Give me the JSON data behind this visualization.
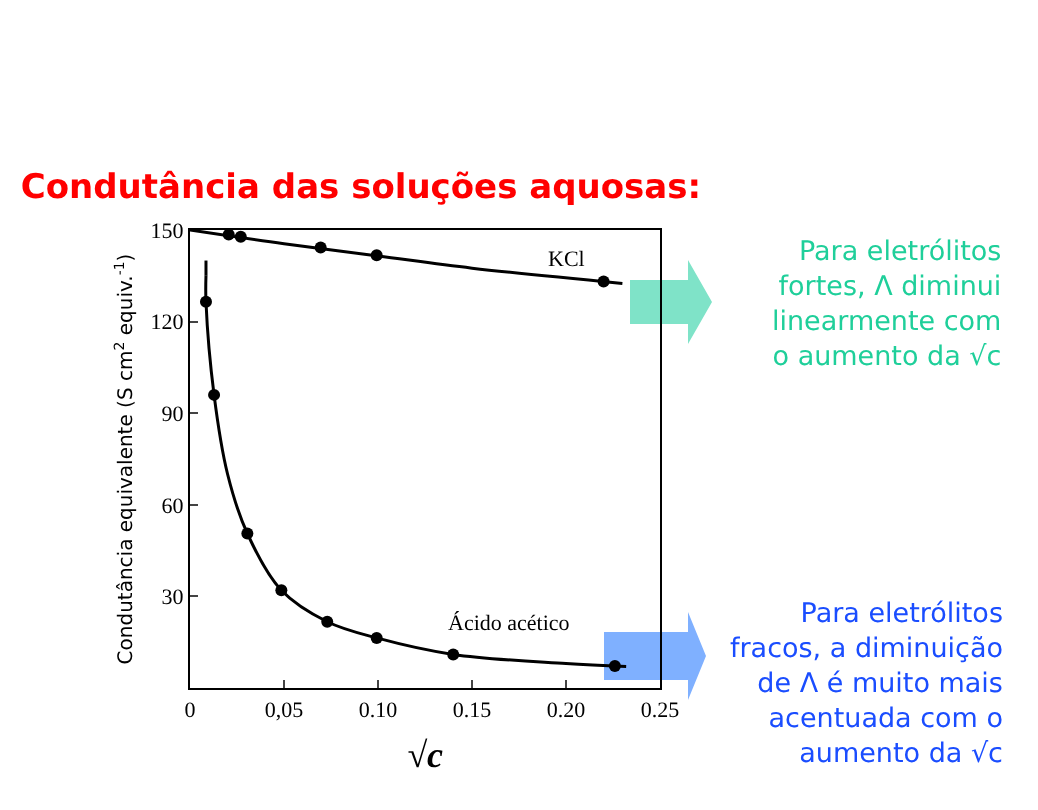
{
  "chart_data": {
    "type": "scatter",
    "title": "Condutância das soluções aquosas:",
    "xlabel": "√c",
    "ylabel": "Condutância equivalente (S cm$^{2}$ equiv.$^{-1}$)",
    "xlim": [
      0,
      0.25
    ],
    "xticks": [
      0,
      {
        "value": 0.05,
        "label": "0,05"
      },
      {
        "value": 0.1,
        "label": "0.10"
      },
      0.15,
      {
        "value": 0.2,
        "label": "0.20"
      },
      0.25
    ],
    "ylim": [
      0,
      150
    ],
    "yticks": [
      30,
      60,
      90,
      120,
      150
    ],
    "grid": false,
    "marker": "circle",
    "series": [
      {
        "color": "#000000",
        "x": [
          0.0206,
          0.027,
          0.0695,
          0.0993,
          0.22
        ],
        "values": [
          148.5,
          147.8,
          144.3,
          141.7,
          133.1
        ]
      },
      {
        "color": "#000000",
        "x": [
          0.0085,
          0.0128,
          0.0305,
          0.0486,
          0.073,
          0.0993,
          0.14,
          0.226
        ],
        "values": [
          126.5,
          96,
          50.6,
          32,
          21.7,
          16.4,
          11,
          7.2
        ]
      },
      {
        "type": "line",
        "marker": "none",
        "color": "#000000",
        "line_style": "solid",
        "x": [
          0,
          0.05,
          0.1,
          0.15,
          0.23
        ],
        "values": [
          150,
          145.5,
          141.5,
          137.5,
          132.5
        ]
      },
      {
        "type": "line",
        "marker": "none",
        "color": "#000000",
        "line_style": "solid",
        "x": [
          0.0085,
          0.0085,
          0.0128,
          0.02,
          0.0305,
          0.0486,
          0.073,
          0.0993,
          0.14,
          0.2,
          0.232
        ],
        "values": [
          135,
          126.5,
          96,
          70,
          50.6,
          32,
          21.7,
          16.4,
          11,
          8,
          7
        ]
      },
      {
        "type": "line",
        "marker": "none",
        "color": "#000000",
        "line_style": "dashed",
        "x": [
          0.0085,
          0.0085
        ],
        "values": [
          140,
          135
        ]
      }
    ],
    "annotations": [
      "KCl",
      "Ácido acético",
      "Para eletrólitos\nfortes, Λ diminui\nlinearmente com\no aumento da √c",
      "Para eletrólitos\nfracos, a diminuição\nde Λ é muito mais\nacentuada com o\naumento da √c"
    ]
  }
}
